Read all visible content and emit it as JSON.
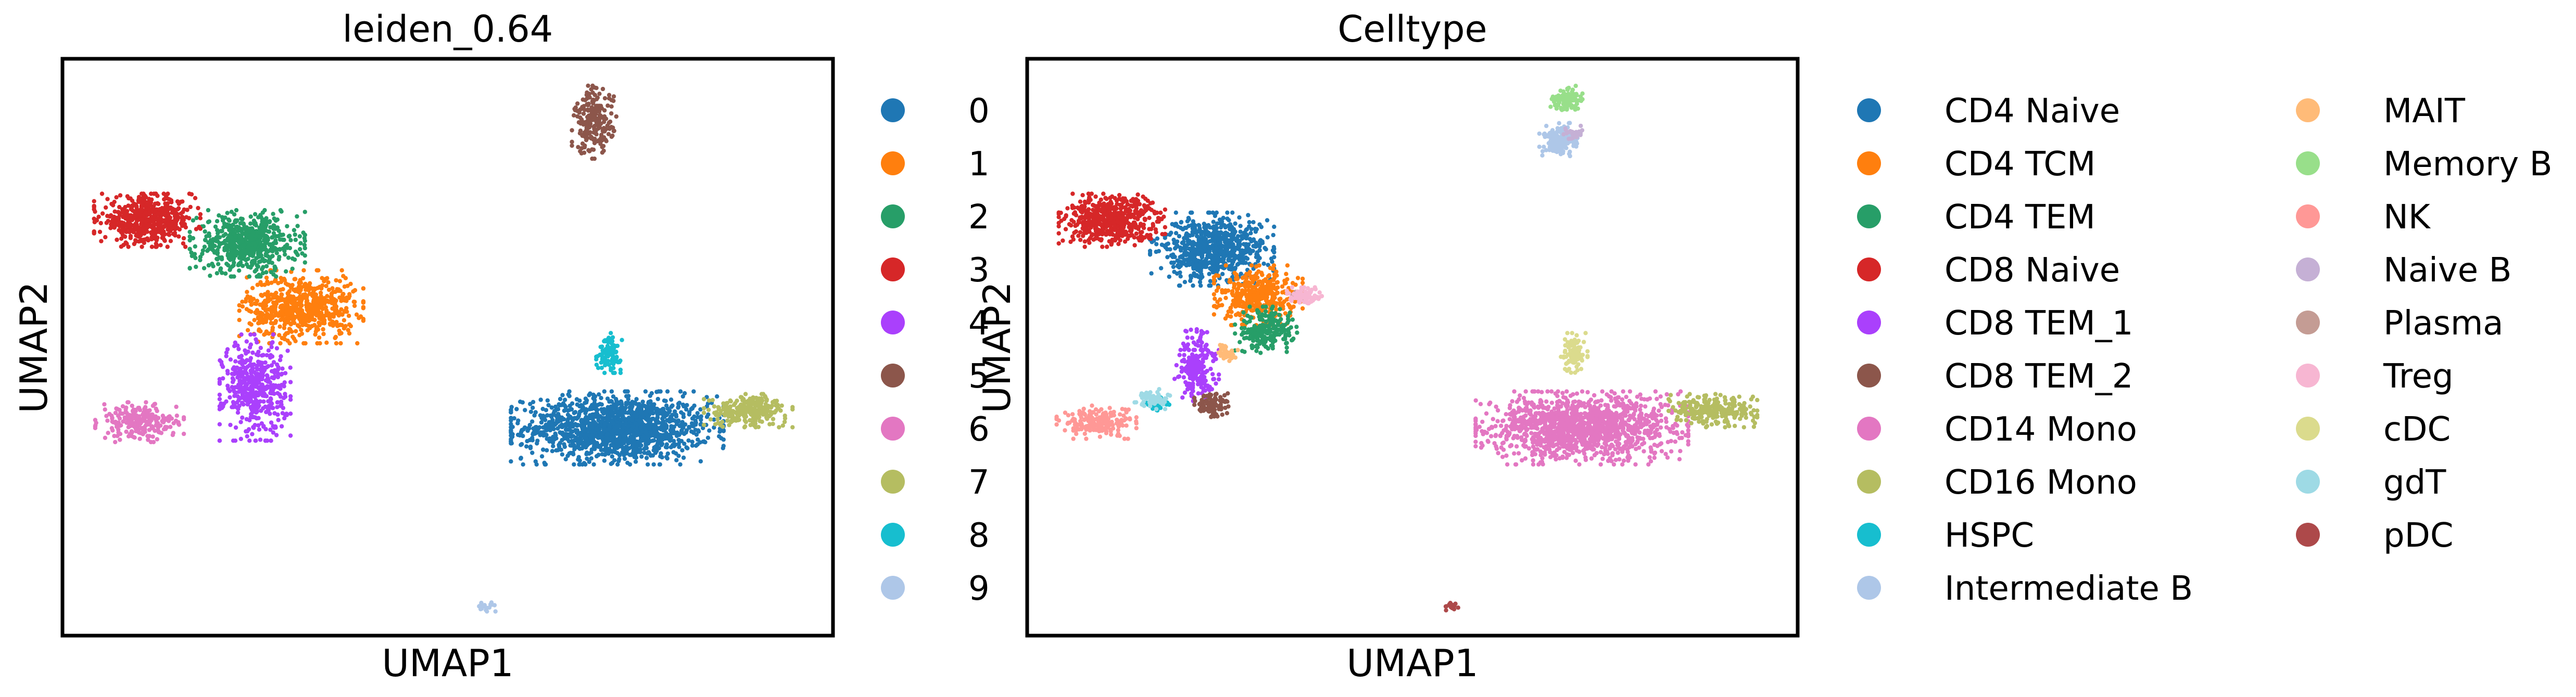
{
  "chart_data": [
    {
      "type": "scatter",
      "title": "leiden_0.64",
      "xlabel": "UMAP1",
      "ylabel": "UMAP2",
      "xticks": [],
      "yticks": [],
      "legend_position": "right",
      "legend": [
        {
          "label": "0",
          "color": "#1f77b4"
        },
        {
          "label": "1",
          "color": "#ff7f0e"
        },
        {
          "label": "2",
          "color": "#279e68"
        },
        {
          "label": "3",
          "color": "#d62728"
        },
        {
          "label": "4",
          "color": "#aa40fc"
        },
        {
          "label": "5",
          "color": "#8c564b"
        },
        {
          "label": "6",
          "color": "#e377c2"
        },
        {
          "label": "7",
          "color": "#b5bd61"
        },
        {
          "label": "8",
          "color": "#17becf"
        },
        {
          "label": "9",
          "color": "#aec7e8"
        }
      ],
      "clusters": [
        {
          "label": "0",
          "cx": 0.72,
          "cy": 0.36,
          "rx": 0.12,
          "ry": 0.055,
          "n": 1400
        },
        {
          "label": "1",
          "cx": 0.31,
          "cy": 0.57,
          "rx": 0.07,
          "ry": 0.055,
          "n": 650
        },
        {
          "label": "2",
          "cx": 0.24,
          "cy": 0.68,
          "rx": 0.065,
          "ry": 0.05,
          "n": 600
        },
        {
          "label": "3",
          "cx": 0.11,
          "cy": 0.72,
          "rx": 0.06,
          "ry": 0.04,
          "n": 550
        },
        {
          "label": "4",
          "cx": 0.25,
          "cy": 0.43,
          "rx": 0.04,
          "ry": 0.08,
          "n": 450
        },
        {
          "label": "5",
          "cx": 0.69,
          "cy": 0.89,
          "rx": 0.025,
          "ry": 0.055,
          "n": 220
        },
        {
          "label": "6",
          "cx": 0.1,
          "cy": 0.37,
          "rx": 0.05,
          "ry": 0.03,
          "n": 230
        },
        {
          "label": "7",
          "cx": 0.89,
          "cy": 0.39,
          "rx": 0.05,
          "ry": 0.025,
          "n": 260
        },
        {
          "label": "8",
          "cx": 0.71,
          "cy": 0.49,
          "rx": 0.015,
          "ry": 0.03,
          "n": 100
        },
        {
          "label": "9",
          "cx": 0.55,
          "cy": 0.05,
          "rx": 0.012,
          "ry": 0.007,
          "n": 20
        }
      ]
    },
    {
      "type": "scatter",
      "title": "Celltype",
      "xlabel": "UMAP1",
      "ylabel": "UMAP2",
      "xticks": [],
      "yticks": [],
      "legend_position": "right",
      "legend": [
        {
          "label": "CD4 Naive",
          "color": "#1f77b4"
        },
        {
          "label": "CD4 TCM",
          "color": "#ff7f0e"
        },
        {
          "label": "CD4 TEM",
          "color": "#279e68"
        },
        {
          "label": "CD8 Naive",
          "color": "#d62728"
        },
        {
          "label": "CD8 TEM_1",
          "color": "#aa40fc"
        },
        {
          "label": "CD8 TEM_2",
          "color": "#8c564b"
        },
        {
          "label": "CD14 Mono",
          "color": "#e377c2"
        },
        {
          "label": "CD16 Mono",
          "color": "#b5bd61"
        },
        {
          "label": "HSPC",
          "color": "#17becf"
        },
        {
          "label": "Intermediate B",
          "color": "#aec7e8"
        },
        {
          "label": "MAIT",
          "color": "#ffbb78"
        },
        {
          "label": "Memory B",
          "color": "#98df8a"
        },
        {
          "label": "NK",
          "color": "#ff9896"
        },
        {
          "label": "Naive B",
          "color": "#c5b0d5"
        },
        {
          "label": "Plasma",
          "color": "#c49c94"
        },
        {
          "label": "Treg",
          "color": "#f7b6d2"
        },
        {
          "label": "cDC",
          "color": "#dbdb8d"
        },
        {
          "label": "gdT",
          "color": "#9edae5"
        },
        {
          "label": "pDC",
          "color": "#ad494a"
        }
      ],
      "clusters": [
        {
          "label": "CD4 Naive",
          "cx": 0.24,
          "cy": 0.67,
          "rx": 0.07,
          "ry": 0.055,
          "n": 700
        },
        {
          "label": "CD4 TCM",
          "cx": 0.3,
          "cy": 0.59,
          "rx": 0.05,
          "ry": 0.045,
          "n": 420
        },
        {
          "label": "CD4 TEM",
          "cx": 0.31,
          "cy": 0.53,
          "rx": 0.035,
          "ry": 0.035,
          "n": 220
        },
        {
          "label": "CD8 Naive",
          "cx": 0.11,
          "cy": 0.72,
          "rx": 0.06,
          "ry": 0.04,
          "n": 550
        },
        {
          "label": "CD8 TEM_1",
          "cx": 0.22,
          "cy": 0.47,
          "rx": 0.025,
          "ry": 0.055,
          "n": 220
        },
        {
          "label": "CD8 TEM_2",
          "cx": 0.24,
          "cy": 0.4,
          "rx": 0.02,
          "ry": 0.02,
          "n": 100
        },
        {
          "label": "CD14 Mono",
          "cx": 0.72,
          "cy": 0.36,
          "rx": 0.12,
          "ry": 0.055,
          "n": 1400
        },
        {
          "label": "CD16 Mono",
          "cx": 0.89,
          "cy": 0.39,
          "rx": 0.05,
          "ry": 0.025,
          "n": 260
        },
        {
          "label": "HSPC",
          "cx": 0.17,
          "cy": 0.4,
          "rx": 0.015,
          "ry": 0.015,
          "n": 25
        },
        {
          "label": "Intermediate B",
          "cx": 0.69,
          "cy": 0.86,
          "rx": 0.022,
          "ry": 0.025,
          "n": 150
        },
        {
          "label": "MAIT",
          "cx": 0.26,
          "cy": 0.49,
          "rx": 0.012,
          "ry": 0.012,
          "n": 40
        },
        {
          "label": "Memory B",
          "cx": 0.7,
          "cy": 0.93,
          "rx": 0.018,
          "ry": 0.02,
          "n": 110
        },
        {
          "label": "NK",
          "cx": 0.09,
          "cy": 0.37,
          "rx": 0.045,
          "ry": 0.025,
          "n": 200
        },
        {
          "label": "Naive B",
          "cx": 0.71,
          "cy": 0.87,
          "rx": 0.012,
          "ry": 0.012,
          "n": 30
        },
        {
          "label": "Plasma",
          "cx": 0.35,
          "cy": 0.59,
          "rx": 0.008,
          "ry": 0.008,
          "n": 10
        },
        {
          "label": "Treg",
          "cx": 0.36,
          "cy": 0.59,
          "rx": 0.02,
          "ry": 0.012,
          "n": 70
        },
        {
          "label": "cDC",
          "cx": 0.71,
          "cy": 0.49,
          "rx": 0.015,
          "ry": 0.03,
          "n": 100
        },
        {
          "label": "gdT",
          "cx": 0.16,
          "cy": 0.41,
          "rx": 0.025,
          "ry": 0.015,
          "n": 60
        },
        {
          "label": "pDC",
          "cx": 0.55,
          "cy": 0.05,
          "rx": 0.012,
          "ry": 0.007,
          "n": 20
        }
      ]
    }
  ]
}
